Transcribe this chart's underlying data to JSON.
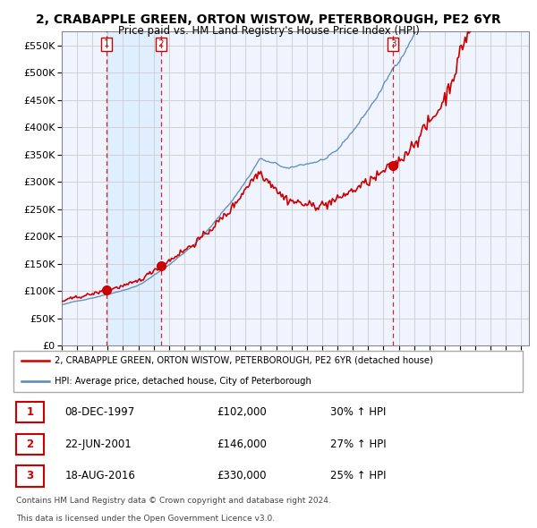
{
  "title": "2, CRABAPPLE GREEN, ORTON WISTOW, PETERBOROUGH, PE2 6YR",
  "subtitle": "Price paid vs. HM Land Registry's House Price Index (HPI)",
  "legend_line1": "2, CRABAPPLE GREEN, ORTON WISTOW, PETERBOROUGH, PE2 6YR (detached house)",
  "legend_line2": "HPI: Average price, detached house, City of Peterborough",
  "footnote1": "Contains HM Land Registry data © Crown copyright and database right 2024.",
  "footnote2": "This data is licensed under the Open Government Licence v3.0.",
  "table": [
    {
      "num": "1",
      "date": "08-DEC-1997",
      "price": "£102,000",
      "hpi": "30% ↑ HPI"
    },
    {
      "num": "2",
      "date": "22-JUN-2001",
      "price": "£146,000",
      "hpi": "27% ↑ HPI"
    },
    {
      "num": "3",
      "date": "18-AUG-2016",
      "price": "£330,000",
      "hpi": "25% ↑ HPI"
    }
  ],
  "sale_dates": [
    1997.93,
    2001.47,
    2016.63
  ],
  "sale_prices": [
    102000,
    146000,
    330000
  ],
  "ylim": [
    0,
    575000
  ],
  "yticks": [
    0,
    50000,
    100000,
    150000,
    200000,
    250000,
    300000,
    350000,
    400000,
    450000,
    500000,
    550000
  ],
  "red_color": "#cc0000",
  "blue_color": "#5588bb",
  "shade_color": "#ddeeff",
  "grid_color": "#cccccc",
  "plot_bg": "#f0f4ff",
  "title_fontsize": 10,
  "subtitle_fontsize": 8.5
}
